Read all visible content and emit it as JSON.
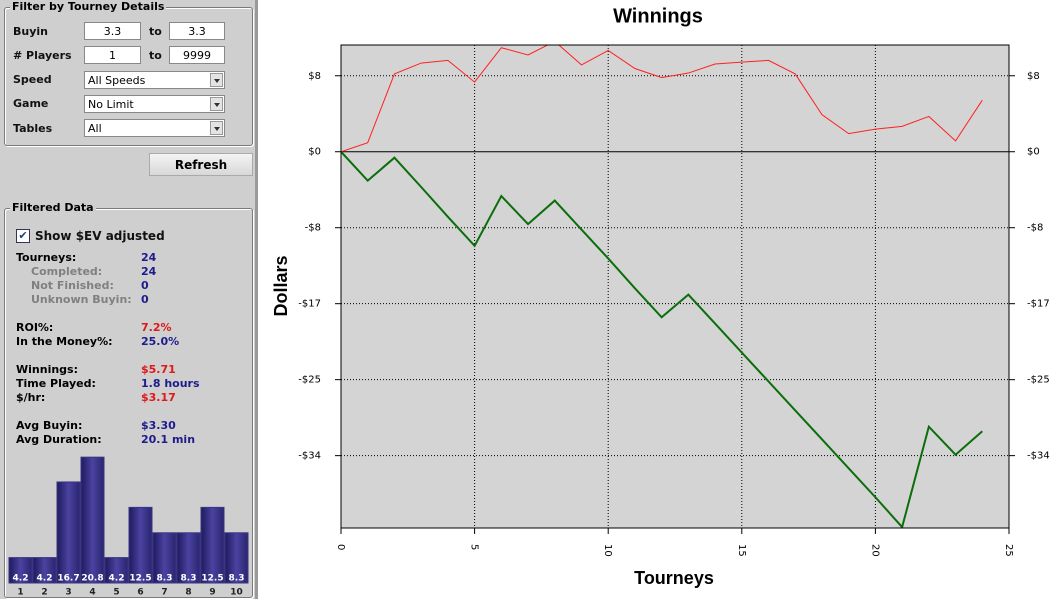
{
  "filter": {
    "title": "Filter by Tourney Details",
    "buyin": {
      "label": "Buyin",
      "from": "3.3",
      "to_word": "to",
      "to": "3.3"
    },
    "players": {
      "label": "# Players",
      "from": "1",
      "to_word": "to",
      "to": "9999"
    },
    "speed": {
      "label": "Speed",
      "value": "All Speeds"
    },
    "game": {
      "label": "Game",
      "value": "No Limit"
    },
    "tables": {
      "label": "Tables",
      "value": "All"
    },
    "button": "Refresh"
  },
  "filtered": {
    "title": "Filtered Data",
    "checkbox": "Show $EV adjusted",
    "stats": [
      {
        "label": "Tourneys:",
        "value": "24"
      },
      {
        "label": "Completed:",
        "value": "24"
      },
      {
        "label": "Not Finished:",
        "value": "0"
      },
      {
        "label": "Unknown Buyin:",
        "value": "0"
      },
      {
        "label": "ROI%:",
        "value": "7.2%"
      },
      {
        "label": "In the Money%:",
        "value": "25.0%"
      },
      {
        "label": "Winnings:",
        "value": "$5.71"
      },
      {
        "label": "Time Played:",
        "value": "1.8 hours"
      },
      {
        "label": "$/hr:",
        "value": "$3.17"
      },
      {
        "label": "Avg Buyin:",
        "value": "$3.30"
      },
      {
        "label": "Avg Duration:",
        "value": "20.1 min"
      }
    ]
  },
  "chart_data": [
    {
      "type": "line",
      "title": "Winnings",
      "xlabel": "Tourneys",
      "ylabel": "Dollars",
      "x": [
        0,
        1,
        2,
        3,
        4,
        5,
        6,
        7,
        8,
        9,
        10,
        11,
        12,
        13,
        14,
        15,
        16,
        17,
        18,
        19,
        20,
        21,
        22,
        23,
        24
      ],
      "series": [
        {
          "color": "#ff2020",
          "values": [
            0,
            1.0,
            8.6,
            9.8,
            10.1,
            7.7,
            11.5,
            10.7,
            12.2,
            9.6,
            11.2,
            9.2,
            8.2,
            8.7,
            9.7,
            9.9,
            10.1,
            8.6,
            4.1,
            2.0,
            2.5,
            2.8,
            3.9,
            1.2,
            5.7
          ]
        },
        {
          "color": "#0a6e0a",
          "values": [
            0,
            -3.2,
            -0.66,
            -3.9,
            -7.2,
            -10.4,
            -4.9,
            -8.0,
            -5.4,
            -8.6,
            -11.8,
            -15.1,
            -18.3,
            -15.8,
            -19.0,
            -22.2,
            -25.4,
            -28.6,
            -31.8,
            -35.0,
            -38.2,
            -41.5,
            -30.4,
            -33.5,
            -30.9
          ]
        }
      ],
      "xlim": [
        0,
        25
      ],
      "xticks": [
        0,
        5,
        10,
        15,
        20,
        25
      ],
      "ylim": [
        -41.6,
        11.8
      ],
      "yticks": [
        {
          "value": 8.4,
          "label": "$8"
        },
        {
          "value": 0,
          "label": "$0"
        },
        {
          "value": -8.4,
          "label": "-$8"
        },
        {
          "value": -16.8,
          "label": "-$17"
        },
        {
          "value": -25.2,
          "label": "-$25"
        },
        {
          "value": -33.6,
          "label": "-$34"
        }
      ],
      "grid": true
    },
    {
      "type": "bar",
      "categories": [
        "1",
        "2",
        "3",
        "4",
        "5",
        "6",
        "7",
        "8",
        "9",
        "10"
      ],
      "values": [
        4.2,
        4.2,
        16.7,
        20.8,
        4.2,
        12.5,
        8.3,
        8.3,
        12.5,
        8.3
      ],
      "color": "#3b3583"
    }
  ]
}
